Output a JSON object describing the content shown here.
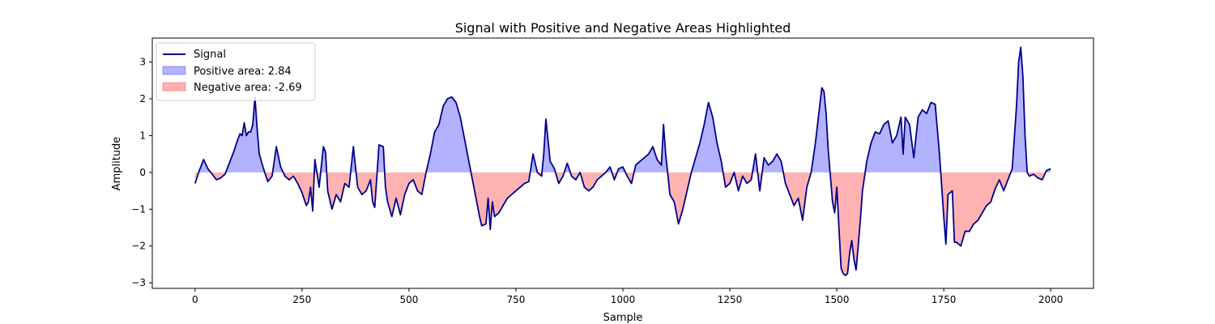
{
  "chart_data": {
    "type": "area",
    "title": "Signal with Positive and Negative Areas Highlighted",
    "xlabel": "Sample",
    "ylabel": "Amplitude",
    "xlim": [
      -100,
      2100
    ],
    "ylim": [
      -3.15,
      3.65
    ],
    "xticks": [
      0,
      250,
      500,
      750,
      1000,
      1250,
      1500,
      1750,
      2000
    ],
    "yticks": [
      -3,
      -2,
      -1,
      0,
      1,
      2,
      3
    ],
    "grid": false,
    "legend": {
      "position": "top-left",
      "entries": [
        {
          "label": "Signal",
          "kind": "line",
          "color": "#00008b"
        },
        {
          "label": "Positive area: 2.84",
          "kind": "patch",
          "color": "#0000ff",
          "alpha": 0.3
        },
        {
          "label": "Negative area: -2.69",
          "kind": "patch",
          "color": "#ff0000",
          "alpha": 0.3
        }
      ]
    },
    "series": [
      {
        "name": "Signal",
        "color": "#00008b",
        "points": [
          [
            0,
            -0.3
          ],
          [
            10,
            0.05
          ],
          [
            20,
            0.35
          ],
          [
            30,
            0.1
          ],
          [
            40,
            -0.05
          ],
          [
            50,
            -0.2
          ],
          [
            60,
            -0.15
          ],
          [
            70,
            -0.05
          ],
          [
            80,
            0.25
          ],
          [
            90,
            0.55
          ],
          [
            100,
            0.9
          ],
          [
            105,
            1.05
          ],
          [
            110,
            1.0
          ],
          [
            115,
            1.35
          ],
          [
            120,
            1.0
          ],
          [
            125,
            1.1
          ],
          [
            130,
            1.1
          ],
          [
            135,
            1.3
          ],
          [
            140,
            2.05
          ],
          [
            145,
            1.2
          ],
          [
            150,
            0.5
          ],
          [
            160,
            0.1
          ],
          [
            170,
            -0.25
          ],
          [
            180,
            -0.1
          ],
          [
            190,
            0.7
          ],
          [
            200,
            0.15
          ],
          [
            210,
            -0.1
          ],
          [
            220,
            -0.2
          ],
          [
            230,
            -0.1
          ],
          [
            240,
            -0.3
          ],
          [
            250,
            -0.55
          ],
          [
            260,
            -0.9
          ],
          [
            265,
            -0.8
          ],
          [
            270,
            -0.4
          ],
          [
            275,
            -1.05
          ],
          [
            280,
            0.35
          ],
          [
            290,
            -0.4
          ],
          [
            300,
            0.7
          ],
          [
            305,
            0.55
          ],
          [
            310,
            -0.5
          ],
          [
            320,
            -1.0
          ],
          [
            330,
            -0.6
          ],
          [
            340,
            -0.8
          ],
          [
            350,
            -0.3
          ],
          [
            360,
            -0.4
          ],
          [
            370,
            0.7
          ],
          [
            380,
            -0.4
          ],
          [
            390,
            -0.6
          ],
          [
            400,
            -0.5
          ],
          [
            410,
            -0.2
          ],
          [
            415,
            -0.8
          ],
          [
            420,
            -0.95
          ],
          [
            430,
            0.75
          ],
          [
            440,
            0.7
          ],
          [
            445,
            -0.4
          ],
          [
            450,
            -0.8
          ],
          [
            460,
            -1.2
          ],
          [
            470,
            -0.7
          ],
          [
            480,
            -1.15
          ],
          [
            490,
            -0.6
          ],
          [
            500,
            -0.3
          ],
          [
            510,
            -0.2
          ],
          [
            520,
            -0.5
          ],
          [
            530,
            -0.6
          ],
          [
            540,
            0.0
          ],
          [
            550,
            0.5
          ],
          [
            560,
            1.1
          ],
          [
            570,
            1.3
          ],
          [
            580,
            1.8
          ],
          [
            590,
            2.0
          ],
          [
            600,
            2.05
          ],
          [
            610,
            1.9
          ],
          [
            620,
            1.5
          ],
          [
            630,
            0.9
          ],
          [
            640,
            0.3
          ],
          [
            650,
            -0.3
          ],
          [
            660,
            -0.9
          ],
          [
            665,
            -1.2
          ],
          [
            670,
            -1.45
          ],
          [
            680,
            -1.4
          ],
          [
            685,
            -0.7
          ],
          [
            690,
            -1.55
          ],
          [
            695,
            -0.8
          ],
          [
            700,
            -1.2
          ],
          [
            710,
            -1.1
          ],
          [
            720,
            -0.9
          ],
          [
            730,
            -0.7
          ],
          [
            740,
            -0.6
          ],
          [
            750,
            -0.5
          ],
          [
            760,
            -0.4
          ],
          [
            770,
            -0.3
          ],
          [
            780,
            -0.25
          ],
          [
            790,
            0.5
          ],
          [
            800,
            0.0
          ],
          [
            810,
            -0.1
          ],
          [
            815,
            0.5
          ],
          [
            820,
            1.45
          ],
          [
            830,
            0.3
          ],
          [
            840,
            0.1
          ],
          [
            850,
            -0.3
          ],
          [
            860,
            -0.1
          ],
          [
            870,
            0.25
          ],
          [
            880,
            -0.1
          ],
          [
            890,
            -0.2
          ],
          [
            900,
            0.0
          ],
          [
            910,
            -0.4
          ],
          [
            920,
            -0.5
          ],
          [
            930,
            -0.4
          ],
          [
            940,
            -0.2
          ],
          [
            950,
            -0.1
          ],
          [
            960,
            0.0
          ],
          [
            970,
            0.15
          ],
          [
            980,
            -0.2
          ],
          [
            990,
            0.1
          ],
          [
            1000,
            0.15
          ],
          [
            1010,
            -0.1
          ],
          [
            1020,
            -0.3
          ],
          [
            1030,
            0.2
          ],
          [
            1040,
            0.3
          ],
          [
            1050,
            0.4
          ],
          [
            1060,
            0.5
          ],
          [
            1070,
            0.7
          ],
          [
            1080,
            0.35
          ],
          [
            1090,
            0.2
          ],
          [
            1095,
            1.3
          ],
          [
            1100,
            0.5
          ],
          [
            1110,
            -0.6
          ],
          [
            1120,
            -0.8
          ],
          [
            1130,
            -1.4
          ],
          [
            1140,
            -1.0
          ],
          [
            1150,
            -0.5
          ],
          [
            1160,
            0.0
          ],
          [
            1170,
            0.4
          ],
          [
            1180,
            0.8
          ],
          [
            1190,
            1.3
          ],
          [
            1200,
            1.9
          ],
          [
            1210,
            1.5
          ],
          [
            1220,
            0.8
          ],
          [
            1230,
            0.3
          ],
          [
            1240,
            -0.4
          ],
          [
            1250,
            -0.3
          ],
          [
            1260,
            0.0
          ],
          [
            1270,
            -0.5
          ],
          [
            1280,
            -0.1
          ],
          [
            1290,
            -0.3
          ],
          [
            1300,
            -0.2
          ],
          [
            1310,
            0.5
          ],
          [
            1320,
            -0.5
          ],
          [
            1330,
            0.4
          ],
          [
            1340,
            0.2
          ],
          [
            1350,
            0.3
          ],
          [
            1360,
            0.5
          ],
          [
            1370,
            0.3
          ],
          [
            1380,
            -0.3
          ],
          [
            1390,
            -0.6
          ],
          [
            1400,
            -0.9
          ],
          [
            1410,
            -0.7
          ],
          [
            1420,
            -1.3
          ],
          [
            1430,
            -0.4
          ],
          [
            1440,
            0.0
          ],
          [
            1450,
            0.8
          ],
          [
            1460,
            1.8
          ],
          [
            1465,
            2.3
          ],
          [
            1470,
            2.2
          ],
          [
            1475,
            1.6
          ],
          [
            1480,
            0.6
          ],
          [
            1490,
            -0.8
          ],
          [
            1495,
            -1.1
          ],
          [
            1500,
            -0.4
          ],
          [
            1505,
            -1.5
          ],
          [
            1510,
            -2.6
          ],
          [
            1515,
            -2.75
          ],
          [
            1520,
            -2.8
          ],
          [
            1525,
            -2.75
          ],
          [
            1530,
            -2.2
          ],
          [
            1535,
            -1.85
          ],
          [
            1540,
            -2.35
          ],
          [
            1545,
            -2.65
          ],
          [
            1550,
            -2.0
          ],
          [
            1555,
            -1.3
          ],
          [
            1560,
            -0.5
          ],
          [
            1570,
            0.3
          ],
          [
            1580,
            0.8
          ],
          [
            1590,
            1.1
          ],
          [
            1600,
            1.05
          ],
          [
            1610,
            1.3
          ],
          [
            1620,
            1.4
          ],
          [
            1630,
            0.8
          ],
          [
            1640,
            1.0
          ],
          [
            1650,
            1.5
          ],
          [
            1655,
            0.5
          ],
          [
            1660,
            1.5
          ],
          [
            1670,
            1.3
          ],
          [
            1680,
            0.4
          ],
          [
            1690,
            1.5
          ],
          [
            1700,
            1.7
          ],
          [
            1710,
            1.6
          ],
          [
            1720,
            1.9
          ],
          [
            1730,
            1.85
          ],
          [
            1740,
            0.5
          ],
          [
            1750,
            -1.2
          ],
          [
            1755,
            -1.95
          ],
          [
            1760,
            -0.6
          ],
          [
            1770,
            -0.5
          ],
          [
            1775,
            -1.9
          ],
          [
            1780,
            -1.9
          ],
          [
            1790,
            -2.0
          ],
          [
            1800,
            -1.6
          ],
          [
            1810,
            -1.6
          ],
          [
            1820,
            -1.4
          ],
          [
            1830,
            -1.3
          ],
          [
            1840,
            -1.1
          ],
          [
            1850,
            -0.9
          ],
          [
            1860,
            -0.8
          ],
          [
            1870,
            -0.45
          ],
          [
            1880,
            -0.2
          ],
          [
            1890,
            -0.5
          ],
          [
            1900,
            -0.2
          ],
          [
            1910,
            0.1
          ],
          [
            1920,
            1.8
          ],
          [
            1925,
            3.0
          ],
          [
            1930,
            3.4
          ],
          [
            1935,
            2.6
          ],
          [
            1940,
            1.0
          ],
          [
            1945,
            0.0
          ],
          [
            1950,
            -0.1
          ],
          [
            1960,
            -0.05
          ],
          [
            1970,
            -0.15
          ],
          [
            1980,
            -0.2
          ],
          [
            1990,
            0.05
          ],
          [
            2000,
            0.1
          ]
        ]
      }
    ]
  }
}
